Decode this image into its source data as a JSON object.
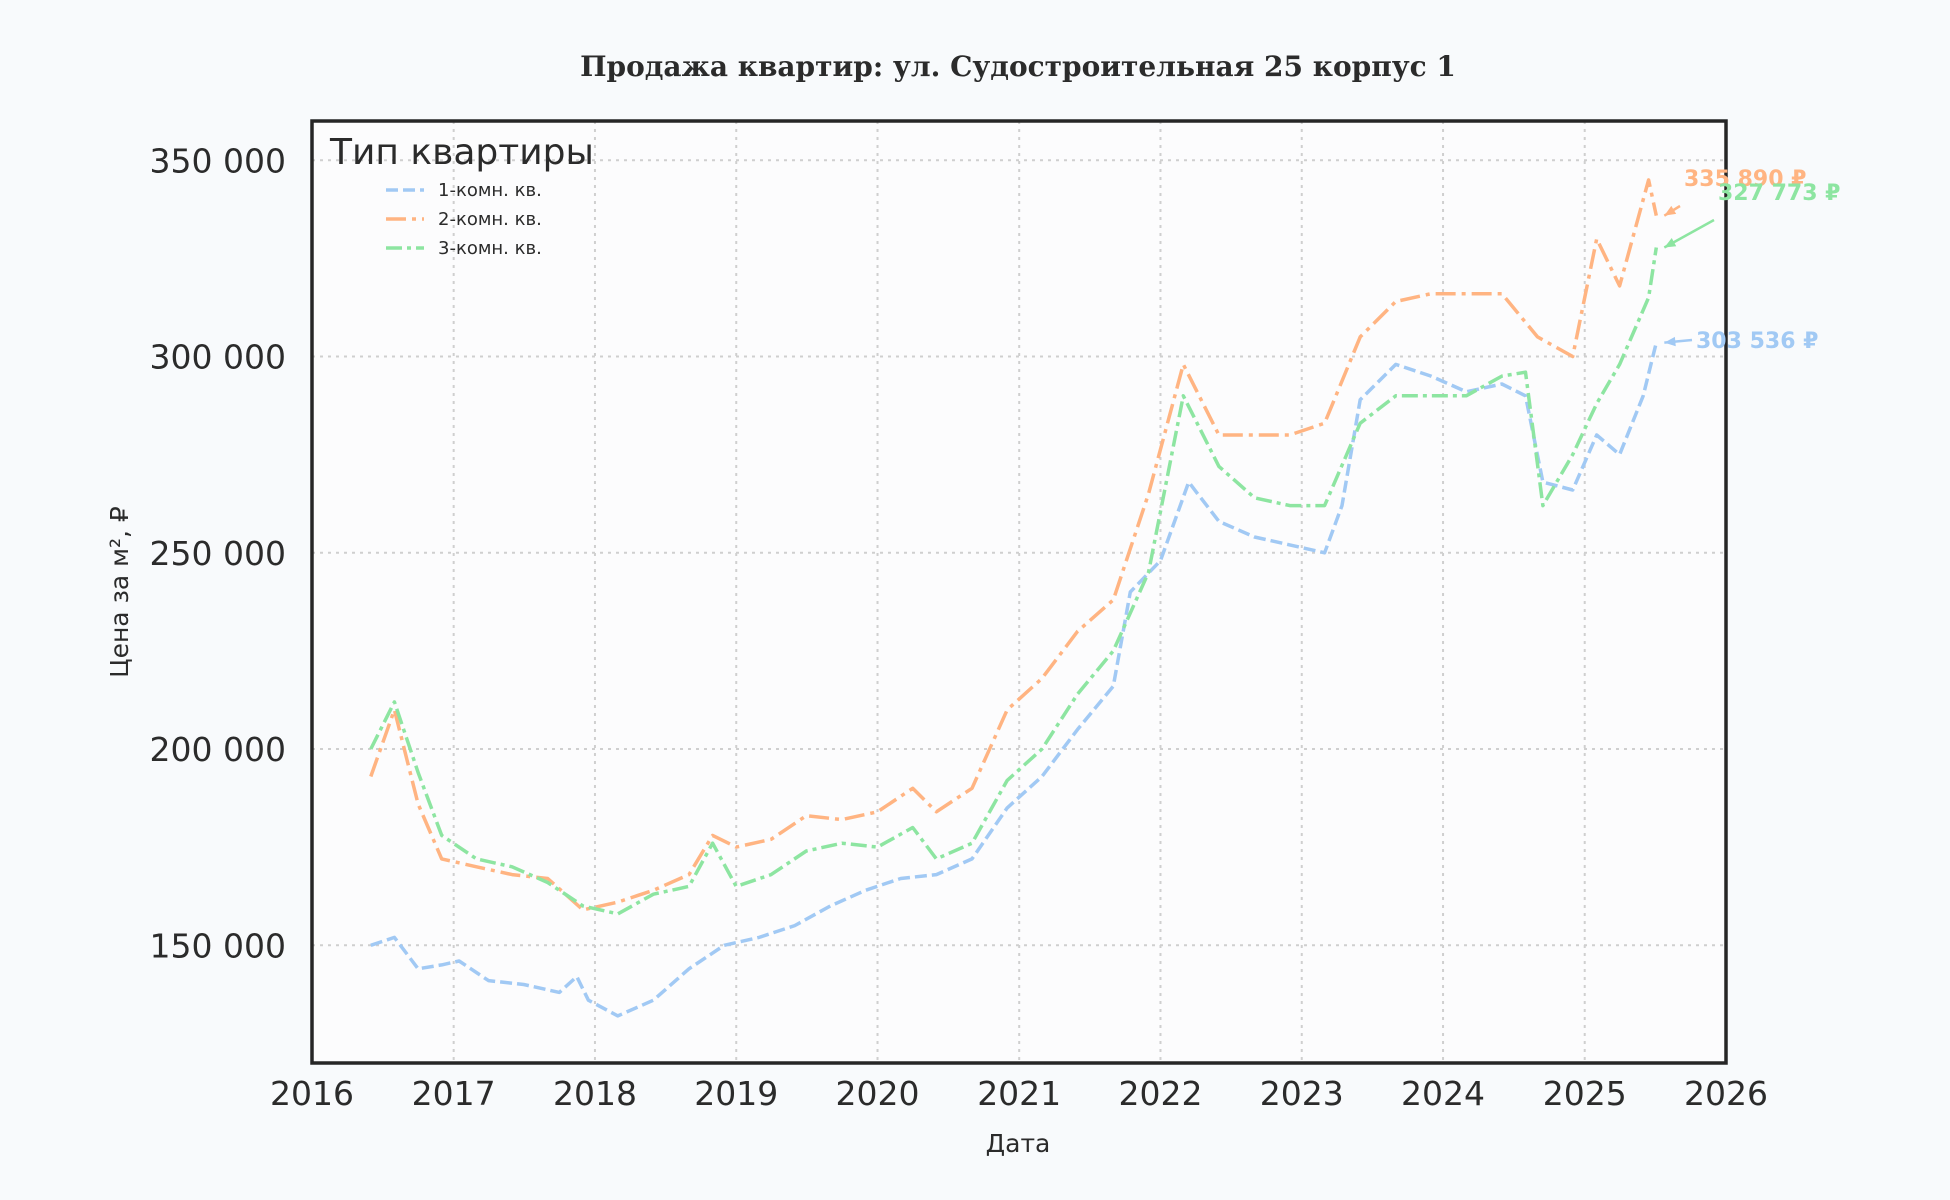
{
  "chart_data": {
    "type": "line",
    "title": "Продажа квартир: ул. Судостроительная 25 корпус 1",
    "xlabel": "Дата",
    "ylabel": "Цена за м², ₽",
    "xlim": [
      "2016-01-01",
      "2026-01-01"
    ],
    "ylim": [
      120000,
      360000
    ],
    "x_ticks": [
      "2016",
      "2017",
      "2018",
      "2019",
      "2020",
      "2021",
      "2022",
      "2023",
      "2024",
      "2025",
      "2026"
    ],
    "y_ticks": [
      {
        "value": 150000,
        "label": "150 000"
      },
      {
        "value": 200000,
        "label": "200 000"
      },
      {
        "value": 250000,
        "label": "250 000"
      },
      {
        "value": 300000,
        "label": "300 000"
      },
      {
        "value": 350000,
        "label": "350 000"
      }
    ],
    "grid": true,
    "legend": {
      "title": "Тип квартиры",
      "placement": "top-left"
    },
    "series": [
      {
        "name": "1-комн. кв.",
        "color": "#a1c9f4",
        "dash": "12 5",
        "points": [
          [
            "2016-06-01",
            150000
          ],
          [
            "2016-08-01",
            152000
          ],
          [
            "2016-10-01",
            144000
          ],
          [
            "2016-12-01",
            145000
          ],
          [
            "2017-01-15",
            146000
          ],
          [
            "2017-04-01",
            141000
          ],
          [
            "2017-07-01",
            140000
          ],
          [
            "2017-10-01",
            138000
          ],
          [
            "2017-11-15",
            142000
          ],
          [
            "2017-12-15",
            136000
          ],
          [
            "2018-03-01",
            132000
          ],
          [
            "2018-06-01",
            136000
          ],
          [
            "2018-09-01",
            144000
          ],
          [
            "2018-12-01",
            150000
          ],
          [
            "2019-03-01",
            152000
          ],
          [
            "2019-06-01",
            155000
          ],
          [
            "2019-09-01",
            160000
          ],
          [
            "2019-12-01",
            164000
          ],
          [
            "2020-03-01",
            167000
          ],
          [
            "2020-06-01",
            168000
          ],
          [
            "2020-09-01",
            172000
          ],
          [
            "2020-12-01",
            185000
          ],
          [
            "2021-03-01",
            193000
          ],
          [
            "2021-06-01",
            205000
          ],
          [
            "2021-09-01",
            216000
          ],
          [
            "2021-10-15",
            240000
          ],
          [
            "2022-01-01",
            248000
          ],
          [
            "2022-03-15",
            268000
          ],
          [
            "2022-06-01",
            258000
          ],
          [
            "2022-09-01",
            254000
          ],
          [
            "2022-12-01",
            252000
          ],
          [
            "2023-03-01",
            250000
          ],
          [
            "2023-04-15",
            262000
          ],
          [
            "2023-06-01",
            289000
          ],
          [
            "2023-09-01",
            298000
          ],
          [
            "2023-12-01",
            295000
          ],
          [
            "2024-03-01",
            291000
          ],
          [
            "2024-06-01",
            293000
          ],
          [
            "2024-08-01",
            290000
          ],
          [
            "2024-09-15",
            268000
          ],
          [
            "2024-12-01",
            266000
          ],
          [
            "2025-02-01",
            280000
          ],
          [
            "2025-04-01",
            275000
          ],
          [
            "2025-06-01",
            290000
          ],
          [
            "2025-07-05",
            303536
          ]
        ]
      },
      {
        "name": "2-комн. кв.",
        "color": "#ffb482",
        "dash": "20 6 4 6",
        "points": [
          [
            "2016-06-01",
            193000
          ],
          [
            "2016-08-01",
            210000
          ],
          [
            "2016-10-01",
            186000
          ],
          [
            "2016-12-01",
            172000
          ],
          [
            "2017-03-01",
            170000
          ],
          [
            "2017-06-01",
            168000
          ],
          [
            "2017-09-01",
            167000
          ],
          [
            "2017-12-01",
            159000
          ],
          [
            "2018-03-01",
            161000
          ],
          [
            "2018-06-01",
            164000
          ],
          [
            "2018-09-01",
            168000
          ],
          [
            "2018-11-01",
            178000
          ],
          [
            "2019-01-01",
            175000
          ],
          [
            "2019-04-01",
            177000
          ],
          [
            "2019-07-01",
            183000
          ],
          [
            "2019-10-01",
            182000
          ],
          [
            "2020-01-01",
            184000
          ],
          [
            "2020-04-01",
            190000
          ],
          [
            "2020-06-01",
            184000
          ],
          [
            "2020-09-01",
            190000
          ],
          [
            "2020-12-01",
            210000
          ],
          [
            "2021-03-01",
            218000
          ],
          [
            "2021-06-01",
            230000
          ],
          [
            "2021-09-01",
            238000
          ],
          [
            "2021-12-01",
            265000
          ],
          [
            "2022-03-01",
            298000
          ],
          [
            "2022-06-01",
            280000
          ],
          [
            "2022-09-01",
            280000
          ],
          [
            "2022-12-01",
            280000
          ],
          [
            "2023-03-01",
            283000
          ],
          [
            "2023-06-01",
            305000
          ],
          [
            "2023-09-01",
            314000
          ],
          [
            "2023-12-01",
            316000
          ],
          [
            "2024-03-01",
            316000
          ],
          [
            "2024-06-01",
            316000
          ],
          [
            "2024-09-01",
            305000
          ],
          [
            "2024-12-01",
            300000
          ],
          [
            "2025-02-01",
            330000
          ],
          [
            "2025-04-01",
            318000
          ],
          [
            "2025-06-15",
            345000
          ],
          [
            "2025-07-05",
            335890
          ]
        ]
      },
      {
        "name": "3-комн. кв.",
        "color": "#8de5a1",
        "dash": "16 5 4 5",
        "points": [
          [
            "2016-06-01",
            200000
          ],
          [
            "2016-08-01",
            212000
          ],
          [
            "2016-10-01",
            194000
          ],
          [
            "2016-12-01",
            178000
          ],
          [
            "2017-03-01",
            172000
          ],
          [
            "2017-06-01",
            170000
          ],
          [
            "2017-09-01",
            166000
          ],
          [
            "2017-12-01",
            160000
          ],
          [
            "2018-03-01",
            158000
          ],
          [
            "2018-06-01",
            163000
          ],
          [
            "2018-09-01",
            165000
          ],
          [
            "2018-11-01",
            176000
          ],
          [
            "2019-01-01",
            165000
          ],
          [
            "2019-04-01",
            168000
          ],
          [
            "2019-07-01",
            174000
          ],
          [
            "2019-10-01",
            176000
          ],
          [
            "2020-01-01",
            175000
          ],
          [
            "2020-04-01",
            180000
          ],
          [
            "2020-06-01",
            172000
          ],
          [
            "2020-09-01",
            176000
          ],
          [
            "2020-12-01",
            192000
          ],
          [
            "2021-03-01",
            200000
          ],
          [
            "2021-06-01",
            214000
          ],
          [
            "2021-09-01",
            225000
          ],
          [
            "2021-12-01",
            245000
          ],
          [
            "2022-03-01",
            290000
          ],
          [
            "2022-06-01",
            272000
          ],
          [
            "2022-09-01",
            264000
          ],
          [
            "2022-12-01",
            262000
          ],
          [
            "2023-03-01",
            262000
          ],
          [
            "2023-06-01",
            283000
          ],
          [
            "2023-09-01",
            290000
          ],
          [
            "2023-12-01",
            290000
          ],
          [
            "2024-03-01",
            290000
          ],
          [
            "2024-06-01",
            295000
          ],
          [
            "2024-08-01",
            296000
          ],
          [
            "2024-09-15",
            262000
          ],
          [
            "2024-12-01",
            275000
          ],
          [
            "2025-02-01",
            288000
          ],
          [
            "2025-04-01",
            298000
          ],
          [
            "2025-06-15",
            315000
          ],
          [
            "2025-07-05",
            327773
          ]
        ]
      }
    ],
    "annotations": [
      {
        "series": 1,
        "text": "335 890 ₽",
        "value": 335890,
        "color": "#ffb482"
      },
      {
        "series": 2,
        "text": "327 773 ₽",
        "value": 327773,
        "color": "#8de5a1"
      },
      {
        "series": 0,
        "text": "303 536 ₽",
        "value": 303536,
        "color": "#a1c9f4"
      }
    ]
  }
}
